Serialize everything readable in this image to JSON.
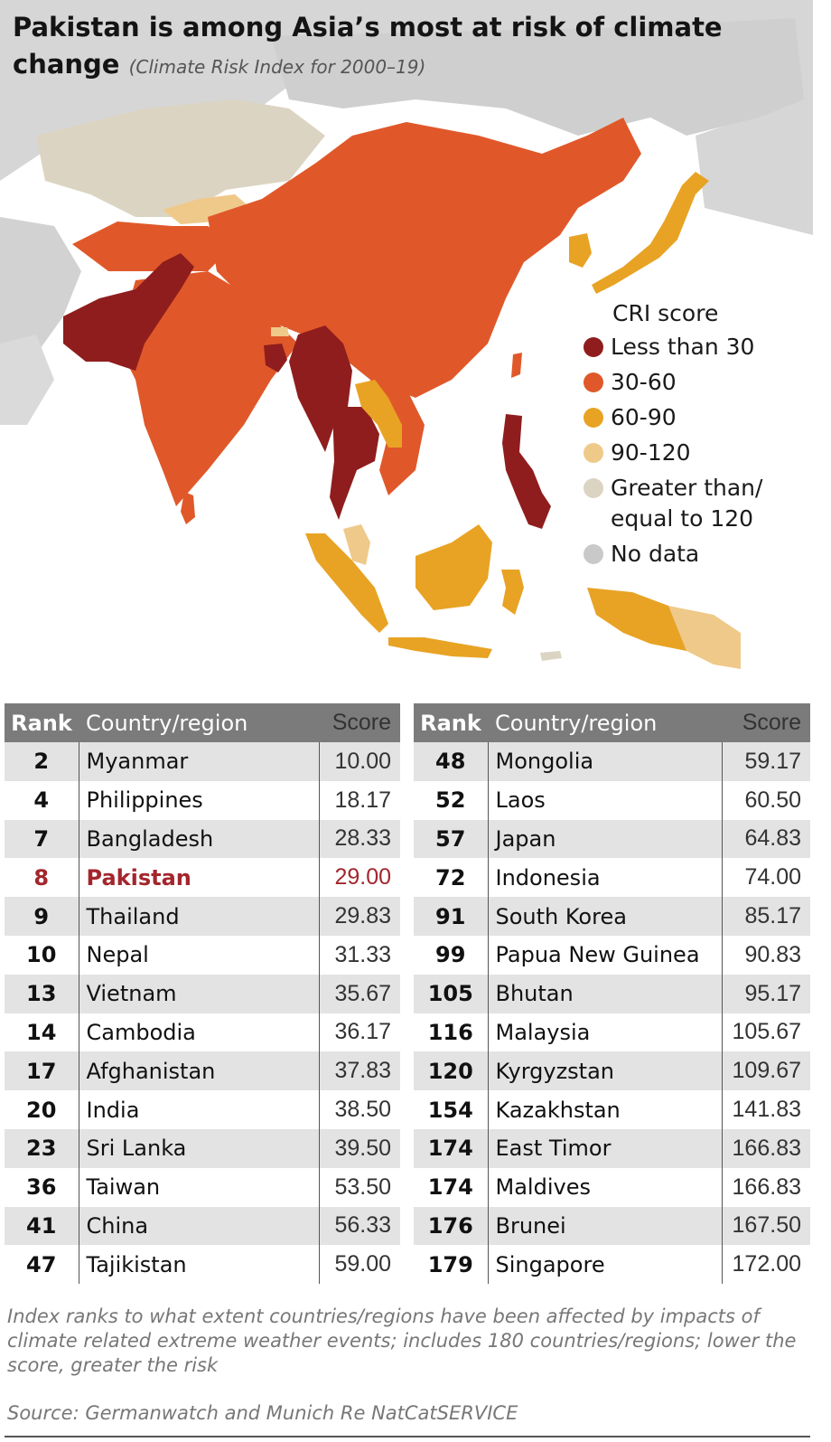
{
  "title": {
    "main": "Pakistan is among Asia’s most at risk of climate change",
    "subtitle": "(Climate Risk Index for 2000–19)"
  },
  "legend": {
    "title": "CRI score",
    "items": [
      {
        "label": "Less than 30",
        "color": "#8f1d1d"
      },
      {
        "label": "30-60",
        "color": "#e0582a"
      },
      {
        "label": "60-90",
        "color": "#e8a324"
      },
      {
        "label": "90-120",
        "color": "#efc98a"
      },
      {
        "label": "Greater than/\nequal to 120",
        "color": "#dcd4c2"
      },
      {
        "label": "No data",
        "color": "#c9c9c9"
      }
    ]
  },
  "table": {
    "headers": {
      "rank": "Rank",
      "country": "Country/region",
      "score": "Score"
    },
    "highlight_color": "#a3262d",
    "left": [
      {
        "rank": "2",
        "country": "Myanmar",
        "score": "10.00"
      },
      {
        "rank": "4",
        "country": "Philippines",
        "score": "18.17"
      },
      {
        "rank": "7",
        "country": "Bangladesh",
        "score": "28.33"
      },
      {
        "rank": "8",
        "country": "Pakistan",
        "score": "29.00",
        "highlight": true
      },
      {
        "rank": "9",
        "country": "Thailand",
        "score": "29.83"
      },
      {
        "rank": "10",
        "country": "Nepal",
        "score": "31.33"
      },
      {
        "rank": "13",
        "country": "Vietnam",
        "score": "35.67"
      },
      {
        "rank": "14",
        "country": "Cambodia",
        "score": "36.17"
      },
      {
        "rank": "17",
        "country": "Afghanistan",
        "score": "37.83"
      },
      {
        "rank": "20",
        "country": "India",
        "score": "38.50"
      },
      {
        "rank": "23",
        "country": "Sri Lanka",
        "score": "39.50"
      },
      {
        "rank": "36",
        "country": "Taiwan",
        "score": "53.50"
      },
      {
        "rank": "41",
        "country": "China",
        "score": "56.33"
      },
      {
        "rank": "47",
        "country": "Tajikistan",
        "score": "59.00"
      }
    ],
    "right": [
      {
        "rank": "48",
        "country": "Mongolia",
        "score": "59.17"
      },
      {
        "rank": "52",
        "country": "Laos",
        "score": "60.50"
      },
      {
        "rank": "57",
        "country": "Japan",
        "score": "64.83"
      },
      {
        "rank": "72",
        "country": "Indonesia",
        "score": "74.00"
      },
      {
        "rank": "91",
        "country": "South Korea",
        "score": "85.17"
      },
      {
        "rank": "99",
        "country": "Papua New Guinea",
        "score": "90.83"
      },
      {
        "rank": "105",
        "country": "Bhutan",
        "score": "95.17"
      },
      {
        "rank": "116",
        "country": "Malaysia",
        "score": "105.67"
      },
      {
        "rank": "120",
        "country": "Kyrgyzstan",
        "score": "109.67"
      },
      {
        "rank": "154",
        "country": "Kazakhstan",
        "score": "141.83"
      },
      {
        "rank": "174",
        "country": "East Timor",
        "score": "166.83"
      },
      {
        "rank": "174",
        "country": "Maldives",
        "score": "166.83"
      },
      {
        "rank": "176",
        "country": "Brunei",
        "score": "167.50"
      },
      {
        "rank": "179",
        "country": "Singapore",
        "score": "172.00"
      }
    ]
  },
  "note": "Index ranks to what extent countries/regions have been affected by impacts of climate related extreme weather events; includes 180 countries/regions; lower the score, greater the risk",
  "source": "Source: Germanwatch and Munich Re NatCatSERVICE"
}
